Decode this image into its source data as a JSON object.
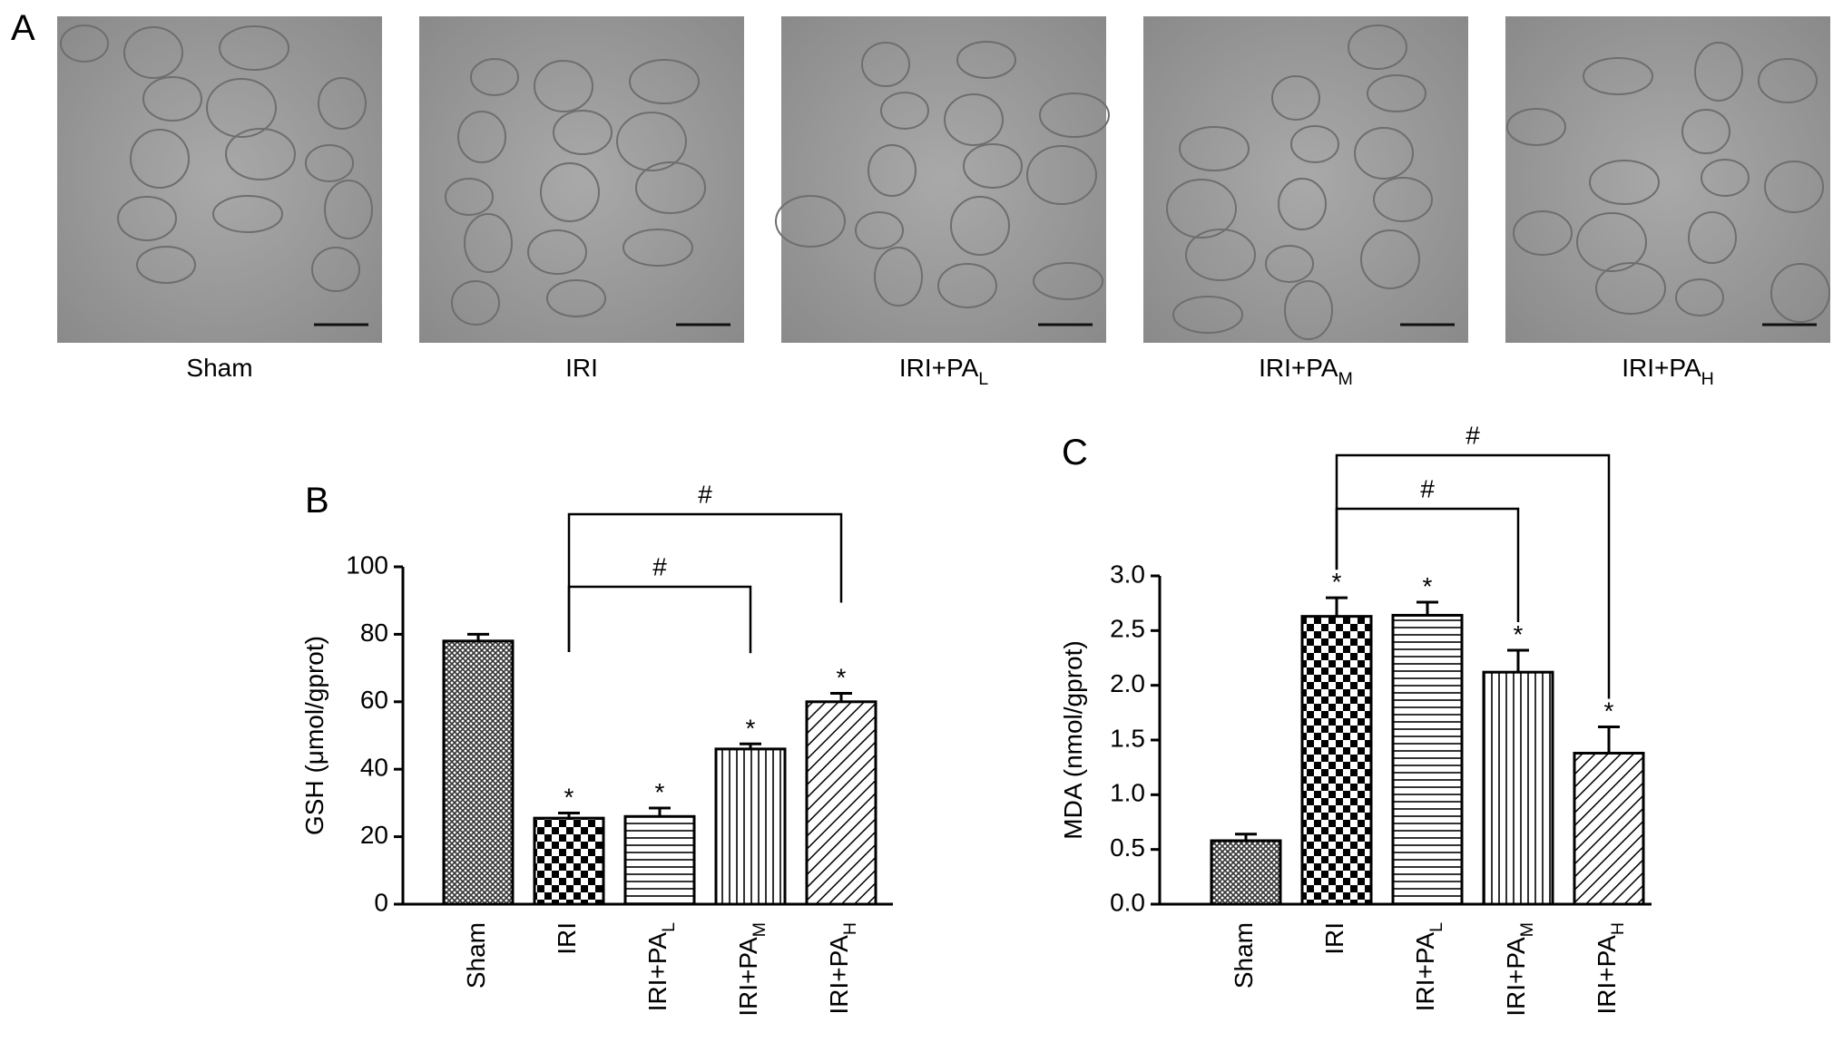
{
  "panel_a": {
    "label": "A",
    "captions": [
      "Sham",
      "IRI",
      "IRI+PA",
      "IRI+PA",
      "IRI+PA"
    ],
    "caption_subscripts": [
      null,
      null,
      "L",
      "M",
      "H"
    ]
  },
  "chart_data": [
    {
      "type": "bar",
      "panel_label": "B",
      "y_label": "GSH (μmol/gprot)",
      "categories": [
        "Sham",
        "IRI",
        "IRI+PA",
        "IRI+PA",
        "IRI+PA"
      ],
      "category_subscripts": [
        null,
        null,
        "L",
        "M",
        "H"
      ],
      "values": [
        78,
        25.5,
        26,
        46,
        60
      ],
      "errors": [
        2,
        1.5,
        2.5,
        1.5,
        2.5
      ],
      "significance": [
        null,
        "*",
        "*",
        "*",
        "*"
      ],
      "comparisons": [
        {
          "from": 1,
          "to": 3,
          "label": "#"
        },
        {
          "from": 1,
          "to": 4,
          "label": "#"
        }
      ],
      "ylim": [
        0,
        100
      ],
      "yticks": [
        0,
        20,
        40,
        60,
        80,
        100
      ],
      "color": "#000000"
    },
    {
      "type": "bar",
      "panel_label": "C",
      "y_label": "MDA (nmol/gprot)",
      "categories": [
        "Sham",
        "IRI",
        "IRI+PA",
        "IRI+PA",
        "IRI+PA"
      ],
      "category_subscripts": [
        null,
        null,
        "L",
        "M",
        "H"
      ],
      "values": [
        0.58,
        2.63,
        2.64,
        2.12,
        1.38
      ],
      "errors": [
        0.06,
        0.17,
        0.12,
        0.2,
        0.24
      ],
      "significance": [
        null,
        "*",
        "*",
        "*",
        "*"
      ],
      "comparisons": [
        {
          "from": 1,
          "to": 3,
          "label": "#"
        },
        {
          "from": 1,
          "to": 4,
          "label": "#"
        }
      ],
      "ylim": [
        0,
        3
      ],
      "yticks": [
        {
          "value": 0,
          "label": "0.0"
        },
        0.5,
        {
          "value": 1,
          "label": "1.0"
        },
        1.5,
        {
          "value": 2,
          "label": "2.0"
        },
        2.5,
        {
          "value": 3,
          "label": "3.0"
        }
      ],
      "color": "#000000"
    }
  ]
}
